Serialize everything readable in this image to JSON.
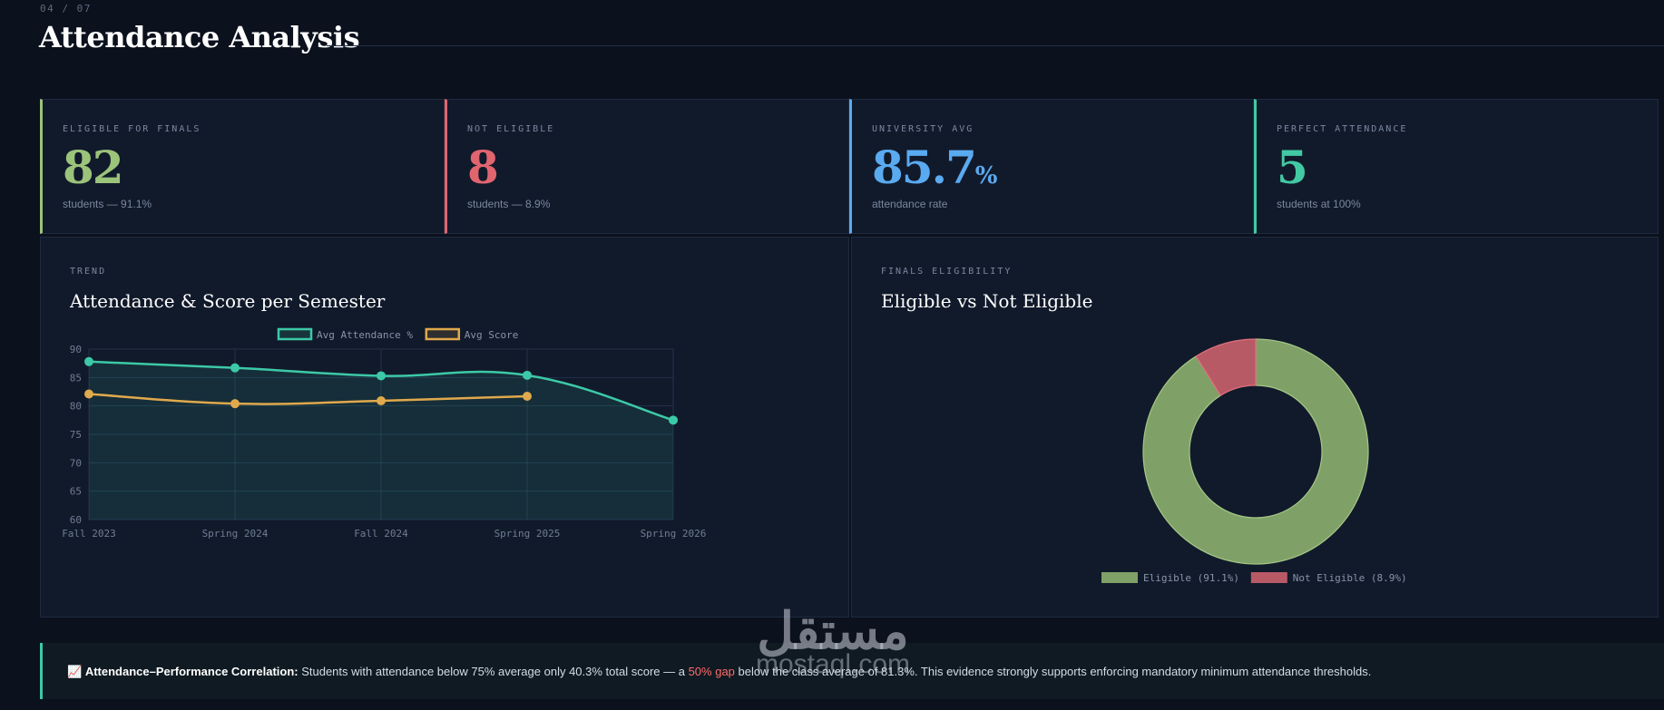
{
  "header": {
    "slide_counter": "04 / 07",
    "title": "Attendance Analysis"
  },
  "stats": [
    {
      "label": "ELIGIBLE FOR FINALS",
      "value": "82",
      "unit": "",
      "sub": "students — 91.1%",
      "color": "#9cc37a"
    },
    {
      "label": "NOT ELIGIBLE",
      "value": "8",
      "unit": "",
      "sub": "students — 8.9%",
      "color": "#e0656f"
    },
    {
      "label": "UNIVERSITY AVG",
      "value": "85.7",
      "unit": "%",
      "sub": "attendance rate",
      "color": "#5aaaf0"
    },
    {
      "label": "PERFECT ATTENDANCE",
      "value": "5",
      "unit": "",
      "sub": "students at 100%",
      "color": "#42c9a3"
    }
  ],
  "trend_panel": {
    "label": "TREND",
    "title": "Attendance & Score per Semester"
  },
  "eligibility_panel": {
    "label": "FINALS ELIGIBILITY",
    "title": "Eligible vs Not Eligible"
  },
  "chart_data": [
    {
      "type": "line",
      "title": "Attendance & Score per Semester",
      "categories": [
        "Fall 2023",
        "Spring 2024",
        "Fall 2024",
        "Spring 2025",
        "Spring 2026"
      ],
      "series": [
        {
          "name": "Avg Attendance %",
          "values": [
            87.8,
            86.7,
            85.3,
            85.4,
            77.5
          ],
          "color": "#3cc9a7",
          "fill": true
        },
        {
          "name": "Avg Score",
          "values": [
            82.1,
            80.4,
            80.9,
            81.7,
            null
          ],
          "color": "#e0a94c",
          "fill": false
        }
      ],
      "ylim": [
        60,
        90
      ],
      "yticks": [
        60,
        65,
        70,
        75,
        80,
        85,
        90
      ],
      "grid": true,
      "legend": "top"
    },
    {
      "type": "pie",
      "title": "Eligible vs Not Eligible",
      "donut": true,
      "slices": [
        {
          "label": "Eligible (91.1%)",
          "value": 91.1,
          "color": "#7fa067"
        },
        {
          "label": "Not Eligible (8.9%)",
          "value": 8.9,
          "color": "#b85a66"
        }
      ],
      "legend": "bottom"
    }
  ],
  "insight": {
    "icon": "📈",
    "lead": "Attendance–Performance Correlation:",
    "text_before": " Students with attendance below 75% average only 40.3% total score — a ",
    "highlight": "50% gap",
    "text_after": " below the class average of 81.3%. This evidence strongly supports enforcing mandatory minimum attendance thresholds."
  },
  "watermark": {
    "arabic": "مستقل",
    "latin": "mostaql.com"
  }
}
